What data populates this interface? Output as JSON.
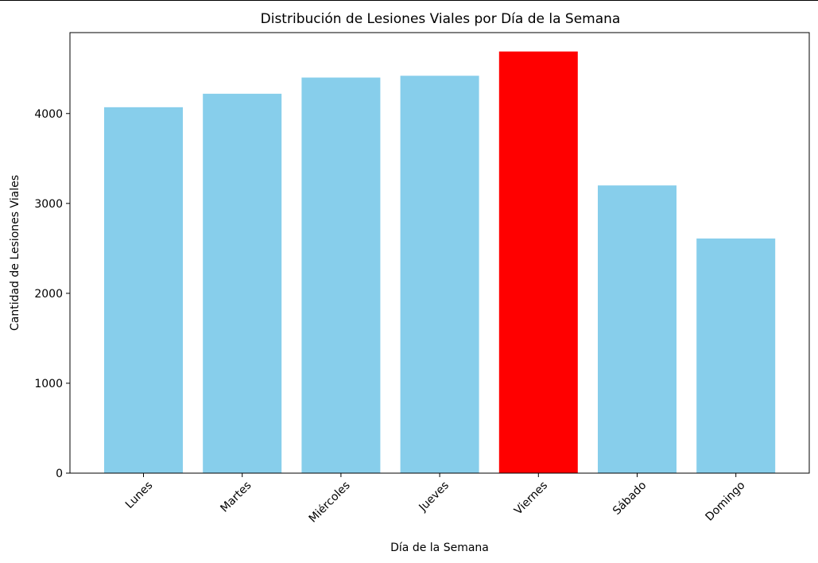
{
  "chart_data": {
    "type": "bar",
    "title": "Distribución de Lesiones Viales por Día de la Semana",
    "xlabel": "Día de la Semana",
    "ylabel": "Cantidad de Lesiones Viales",
    "categories": [
      "Lunes",
      "Martes",
      "Miércoles",
      "Jueves",
      "Viernes",
      "Sábado",
      "Domingo"
    ],
    "values": [
      4070,
      4220,
      4400,
      4420,
      4690,
      3200,
      2610
    ],
    "colors": [
      "#87CEEB",
      "#87CEEB",
      "#87CEEB",
      "#87CEEB",
      "#FF0000",
      "#87CEEB",
      "#87CEEB"
    ],
    "ylim": [
      0,
      4900
    ],
    "yticks": [
      0,
      1000,
      2000,
      3000,
      4000
    ],
    "grid": false,
    "legend": "none"
  }
}
